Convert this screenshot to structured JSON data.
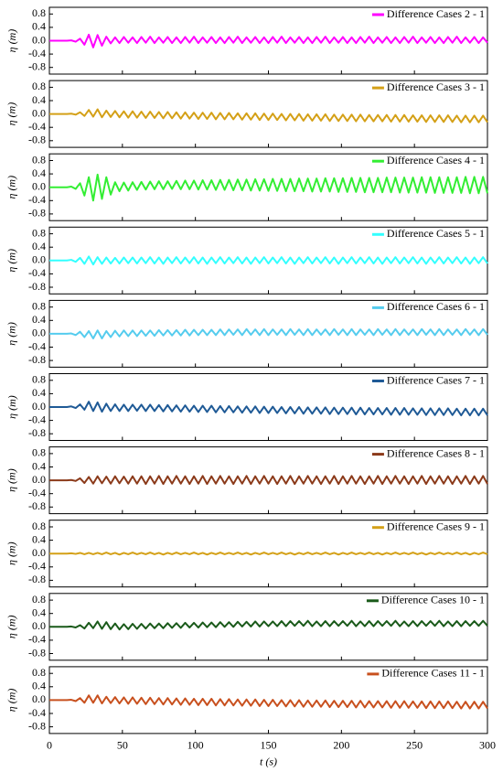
{
  "chart_data": {
    "type": "line",
    "ylabel": "η (m)",
    "xlabel": "t (s)",
    "xlim": [
      0,
      300
    ],
    "xticks": [
      0,
      50,
      100,
      150,
      200,
      250,
      300
    ],
    "ylim": [
      -1,
      1
    ],
    "yticks": [
      -0.8,
      -0.4,
      {
        "value": 0,
        "label": "0.0"
      },
      0.4,
      0.8
    ],
    "x": [
      0,
      3,
      6,
      9,
      12,
      15,
      18,
      21,
      24,
      27,
      30,
      33,
      36,
      39,
      42,
      45,
      48,
      51,
      54,
      57,
      60,
      63,
      66,
      69,
      72,
      75,
      78,
      81,
      84,
      87,
      90,
      93,
      96,
      99,
      102,
      105,
      108,
      111,
      114,
      117,
      120,
      123,
      126,
      129,
      132,
      135,
      138,
      141,
      144,
      147,
      150,
      153,
      156,
      159,
      162,
      165,
      168,
      171,
      174,
      177,
      180,
      183,
      186,
      189,
      192,
      195,
      198,
      201,
      204,
      207,
      210,
      213,
      216,
      219,
      222,
      225,
      228,
      231,
      234,
      237,
      240,
      243,
      246,
      249,
      252,
      255,
      258,
      261,
      264,
      267,
      270,
      273,
      276,
      279,
      282,
      285,
      288,
      291,
      294,
      297,
      300
    ],
    "series": [
      {
        "name": "Difference Cases 2 - 1",
        "color": "#ff00ff",
        "values": [
          0,
          0,
          0,
          0,
          0,
          0.01,
          -0.03,
          0.06,
          -0.12,
          0.18,
          -0.2,
          0.17,
          -0.15,
          0.12,
          -0.08,
          0.1,
          -0.07,
          0.11,
          -0.06,
          0.1,
          -0.07,
          0.11,
          -0.06,
          0.12,
          -0.07,
          0.1,
          -0.06,
          0.11,
          -0.07,
          0.1,
          -0.07,
          0.11,
          -0.06,
          0.12,
          -0.07,
          0.1,
          -0.06,
          0.11,
          -0.07,
          0.1,
          -0.07,
          0.11,
          -0.06,
          0.12,
          -0.07,
          0.1,
          -0.06,
          0.11,
          -0.07,
          0.1,
          -0.07,
          0.11,
          -0.06,
          0.12,
          -0.07,
          0.1,
          -0.06,
          0.11,
          -0.07,
          0.1,
          -0.07,
          0.11,
          -0.06,
          0.12,
          -0.07,
          0.1,
          -0.06,
          0.11,
          -0.07,
          0.1,
          -0.07,
          0.11,
          -0.06,
          0.12,
          -0.07,
          0.1,
          -0.06,
          0.11,
          -0.07,
          0.1,
          -0.07,
          0.11,
          -0.06,
          0.12,
          -0.07,
          0.1,
          -0.06,
          0.11,
          -0.07,
          0.1,
          -0.07,
          0.11,
          -0.06,
          0.12,
          -0.07,
          0.1,
          -0.06,
          0.11,
          -0.07,
          0.1,
          -0.06
        ]
      },
      {
        "name": "Difference Cases 3 - 1",
        "color": "#d4a017",
        "values": [
          0,
          0,
          0,
          0,
          0,
          0.01,
          -0.02,
          0.05,
          -0.06,
          0.12,
          -0.08,
          0.14,
          -0.1,
          0.1,
          -0.09,
          0.09,
          -0.1,
          0.08,
          -0.11,
          0.08,
          -0.11,
          0.07,
          -0.12,
          0.07,
          -0.12,
          0.06,
          -0.13,
          0.06,
          -0.13,
          0.05,
          -0.14,
          0.05,
          -0.14,
          0.04,
          -0.15,
          0.04,
          -0.15,
          0.04,
          -0.16,
          0.03,
          -0.16,
          0.03,
          -0.16,
          0.02,
          -0.17,
          0.02,
          -0.17,
          0.02,
          -0.18,
          0.01,
          -0.18,
          0.01,
          -0.18,
          0,
          -0.19,
          0,
          -0.19,
          0,
          -0.2,
          -0.01,
          -0.2,
          -0.01,
          -0.2,
          -0.01,
          -0.21,
          -0.02,
          -0.21,
          -0.02,
          -0.21,
          -0.02,
          -0.22,
          -0.02,
          -0.22,
          -0.03,
          -0.22,
          -0.03,
          -0.22,
          -0.03,
          -0.23,
          -0.03,
          -0.23,
          -0.03,
          -0.23,
          -0.04,
          -0.23,
          -0.04,
          -0.24,
          -0.04,
          -0.24,
          -0.04,
          -0.24,
          -0.04,
          -0.24,
          -0.05,
          -0.25,
          -0.05,
          -0.25,
          -0.05,
          -0.25,
          -0.05,
          -0.25
        ]
      },
      {
        "name": "Difference Cases 4 - 1",
        "color": "#33ee33",
        "values": [
          0,
          0,
          0,
          0,
          0,
          0.02,
          -0.05,
          0.12,
          -0.25,
          0.3,
          -0.4,
          0.38,
          -0.35,
          0.3,
          -0.22,
          0.15,
          -0.12,
          0.14,
          -0.1,
          0.15,
          -0.08,
          0.16,
          -0.07,
          0.17,
          -0.06,
          0.18,
          -0.06,
          0.18,
          -0.05,
          0.19,
          -0.06,
          0.2,
          -0.06,
          0.2,
          -0.07,
          0.21,
          -0.07,
          0.21,
          -0.08,
          0.22,
          -0.08,
          0.22,
          -0.09,
          0.23,
          -0.09,
          0.23,
          -0.1,
          0.24,
          -0.1,
          0.24,
          -0.11,
          0.25,
          -0.11,
          0.25,
          -0.12,
          0.25,
          -0.12,
          0.26,
          -0.12,
          0.26,
          -0.13,
          0.26,
          -0.13,
          0.27,
          -0.13,
          0.27,
          -0.14,
          0.27,
          -0.14,
          0.28,
          -0.14,
          0.28,
          -0.15,
          0.28,
          -0.15,
          0.28,
          -0.15,
          0.29,
          -0.15,
          0.29,
          -0.16,
          0.29,
          -0.16,
          0.29,
          -0.16,
          0.3,
          -0.16,
          0.3,
          -0.17,
          0.3,
          -0.17,
          0.3,
          -0.17,
          0.3,
          -0.17,
          0.31,
          -0.18,
          0.31,
          -0.18,
          0.31,
          -0.18
        ]
      },
      {
        "name": "Difference Cases 5 - 1",
        "color": "#33ffff",
        "values": [
          0,
          0,
          0,
          0,
          0,
          0.02,
          -0.04,
          0.08,
          -0.1,
          0.12,
          -0.12,
          0.1,
          -0.1,
          0.09,
          -0.09,
          0.08,
          -0.09,
          0.09,
          -0.08,
          0.09,
          -0.09,
          0.09,
          -0.08,
          0.1,
          -0.09,
          0.09,
          -0.1,
          0.09,
          -0.08,
          0.1,
          -0.09,
          0.09,
          -0.08,
          0.1,
          -0.09,
          0.09,
          -0.1,
          0.09,
          -0.08,
          0.1,
          -0.09,
          0.09,
          -0.08,
          0.1,
          -0.09,
          0.09,
          -0.1,
          0.09,
          -0.08,
          0.1,
          -0.09,
          0.09,
          -0.08,
          0.1,
          -0.09,
          0.09,
          -0.1,
          0.09,
          -0.08,
          0.1,
          -0.09,
          0.09,
          -0.08,
          0.1,
          -0.09,
          0.09,
          -0.1,
          0.09,
          -0.08,
          0.1,
          -0.09,
          0.09,
          -0.08,
          0.1,
          -0.09,
          0.09,
          -0.1,
          0.09,
          -0.08,
          0.1,
          -0.09,
          0.09,
          -0.08,
          0.1,
          -0.09,
          0.09,
          -0.1,
          0.09,
          -0.08,
          0.1,
          -0.09,
          0.09,
          -0.08,
          0.1,
          -0.09,
          0.09,
          -0.1,
          0.09,
          -0.08,
          0.1,
          -0.09
        ]
      },
      {
        "name": "Difference Cases 6 - 1",
        "color": "#55ccee",
        "values": [
          0,
          0,
          0,
          0,
          0,
          0.01,
          -0.04,
          0.06,
          -0.1,
          0.08,
          -0.14,
          0.1,
          -0.14,
          0.08,
          -0.1,
          0.09,
          -0.08,
          0.1,
          -0.07,
          0.1,
          -0.07,
          0.1,
          -0.06,
          0.1,
          -0.06,
          0.11,
          -0.05,
          0.11,
          -0.05,
          0.11,
          -0.05,
          0.12,
          -0.05,
          0.12,
          -0.04,
          0.12,
          -0.04,
          0.12,
          -0.04,
          0.13,
          -0.04,
          0.13,
          -0.03,
          0.13,
          -0.04,
          0.14,
          -0.03,
          0.13,
          -0.04,
          0.14,
          -0.04,
          0.13,
          -0.03,
          0.13,
          -0.04,
          0.14,
          -0.03,
          0.13,
          -0.04,
          0.14,
          -0.04,
          0.13,
          -0.03,
          0.13,
          -0.04,
          0.14,
          -0.03,
          0.13,
          -0.04,
          0.14,
          -0.04,
          0.13,
          -0.03,
          0.13,
          -0.04,
          0.14,
          -0.03,
          0.13,
          -0.04,
          0.14,
          -0.04,
          0.13,
          -0.03,
          0.13,
          -0.04,
          0.14,
          -0.03,
          0.13,
          -0.04,
          0.14,
          -0.04,
          0.13,
          -0.03,
          0.13,
          -0.04,
          0.14,
          -0.03,
          0.13,
          -0.04,
          0.14,
          -0.03
        ]
      },
      {
        "name": "Difference Cases 7 - 1",
        "color": "#1f5a96",
        "values": [
          0,
          0,
          0,
          0,
          0,
          0.02,
          -0.03,
          0.08,
          -0.08,
          0.16,
          -0.12,
          0.14,
          -0.14,
          0.1,
          -0.12,
          0.08,
          -0.12,
          0.07,
          -0.12,
          0.07,
          -0.11,
          0.07,
          -0.12,
          0.07,
          -0.12,
          0.06,
          -0.13,
          0.06,
          -0.13,
          0.05,
          -0.14,
          0.05,
          -0.14,
          0.04,
          -0.15,
          0.04,
          -0.15,
          0.04,
          -0.16,
          0.03,
          -0.16,
          0.03,
          -0.16,
          0.02,
          -0.17,
          0.02,
          -0.17,
          0.02,
          -0.18,
          0.01,
          -0.18,
          0.01,
          -0.18,
          0,
          -0.19,
          0,
          -0.19,
          0,
          -0.2,
          -0.01,
          -0.2,
          -0.01,
          -0.2,
          -0.01,
          -0.21,
          -0.02,
          -0.21,
          -0.02,
          -0.21,
          -0.02,
          -0.22,
          -0.02,
          -0.22,
          -0.03,
          -0.22,
          -0.03,
          -0.22,
          -0.03,
          -0.23,
          -0.03,
          -0.23,
          -0.03,
          -0.23,
          -0.04,
          -0.23,
          -0.04,
          -0.24,
          -0.04,
          -0.24,
          -0.04,
          -0.24,
          -0.04,
          -0.24,
          -0.05,
          -0.25,
          -0.05,
          -0.25,
          -0.05,
          -0.25,
          -0.05,
          -0.25
        ]
      },
      {
        "name": "Difference Cases 8 - 1",
        "color": "#8b3a1a",
        "values": [
          0,
          0,
          0,
          0,
          0,
          0.01,
          -0.02,
          0.06,
          -0.08,
          0.1,
          -0.1,
          0.12,
          -0.09,
          0.11,
          -0.1,
          0.12,
          -0.09,
          0.11,
          -0.1,
          0.12,
          -0.1,
          0.12,
          -0.11,
          0.12,
          -0.1,
          0.13,
          -0.11,
          0.12,
          -0.1,
          0.13,
          -0.1,
          0.12,
          -0.11,
          0.12,
          -0.1,
          0.13,
          -0.11,
          0.12,
          -0.1,
          0.13,
          -0.1,
          0.12,
          -0.11,
          0.12,
          -0.1,
          0.13,
          -0.11,
          0.12,
          -0.1,
          0.13,
          -0.1,
          0.12,
          -0.11,
          0.12,
          -0.1,
          0.13,
          -0.11,
          0.12,
          -0.1,
          0.13,
          -0.1,
          0.12,
          -0.11,
          0.12,
          -0.1,
          0.13,
          -0.11,
          0.12,
          -0.1,
          0.13,
          -0.1,
          0.12,
          -0.11,
          0.12,
          -0.1,
          0.13,
          -0.11,
          0.12,
          -0.1,
          0.13,
          -0.1,
          0.12,
          -0.11,
          0.12,
          -0.1,
          0.13,
          -0.11,
          0.12,
          -0.1,
          0.13,
          -0.1,
          0.12,
          -0.11,
          0.12,
          -0.1,
          0.13,
          -0.11,
          0.12,
          -0.1,
          0.13,
          -0.11
        ]
      },
      {
        "name": "Difference Cases 9 - 1",
        "color": "#d4a017",
        "values": [
          0,
          0,
          0,
          0,
          0,
          0.01,
          -0.01,
          0.02,
          -0.02,
          0.02,
          -0.02,
          0.02,
          -0.02,
          0.03,
          -0.02,
          0.02,
          -0.03,
          0.02,
          -0.02,
          0.03,
          -0.02,
          0.02,
          -0.02,
          0.03,
          -0.02,
          0.02,
          -0.03,
          0.02,
          -0.02,
          0.03,
          -0.02,
          0.02,
          -0.02,
          0.03,
          -0.02,
          0.02,
          -0.03,
          0.02,
          -0.02,
          0.03,
          -0.02,
          0.02,
          -0.02,
          0.03,
          -0.02,
          0.02,
          -0.03,
          0.02,
          -0.02,
          0.03,
          -0.02,
          0.02,
          -0.02,
          0.03,
          -0.02,
          0.02,
          -0.03,
          0.02,
          -0.02,
          0.03,
          -0.02,
          0.02,
          -0.02,
          0.03,
          -0.02,
          0.02,
          -0.03,
          0.02,
          -0.02,
          0.03,
          -0.02,
          0.02,
          -0.02,
          0.03,
          -0.02,
          0.02,
          -0.03,
          0.02,
          -0.02,
          0.03,
          -0.02,
          0.02,
          -0.02,
          0.03,
          -0.02,
          0.02,
          -0.03,
          0.02,
          -0.02,
          0.03,
          -0.02,
          0.02,
          -0.02,
          0.03,
          -0.02,
          0.02,
          -0.03,
          0.02,
          -0.02,
          0.03,
          -0.02
        ]
      },
      {
        "name": "Difference Cases 10 - 1",
        "color": "#1a5a1a",
        "values": [
          0,
          0,
          0,
          0,
          0,
          0.01,
          -0.02,
          0.05,
          -0.05,
          0.12,
          -0.04,
          0.16,
          -0.06,
          0.14,
          -0.07,
          0.1,
          -0.08,
          0.08,
          -0.07,
          0.09,
          -0.06,
          0.09,
          -0.05,
          0.1,
          -0.04,
          0.1,
          -0.04,
          0.11,
          -0.03,
          0.11,
          -0.03,
          0.12,
          -0.02,
          0.12,
          -0.02,
          0.13,
          -0.01,
          0.13,
          -0.01,
          0.14,
          0,
          0.14,
          0,
          0.15,
          0.01,
          0.15,
          0.01,
          0.16,
          0.01,
          0.16,
          0.02,
          0.16,
          0.02,
          0.17,
          0.02,
          0.17,
          0.03,
          0.17,
          0.03,
          0.18,
          0.02,
          0.16,
          0.02,
          0.17,
          0.02,
          0.17,
          0.03,
          0.17,
          0.03,
          0.18,
          0.02,
          0.16,
          0.02,
          0.17,
          0.02,
          0.17,
          0.03,
          0.17,
          0.03,
          0.18,
          0.02,
          0.16,
          0.02,
          0.17,
          0.02,
          0.17,
          0.03,
          0.17,
          0.03,
          0.18,
          0.02,
          0.16,
          0.02,
          0.17,
          0.02,
          0.17,
          0.03,
          0.17,
          0.03,
          0.18,
          0.03
        ]
      },
      {
        "name": "Difference Cases 11 - 1",
        "color": "#c8501e",
        "values": [
          0,
          0,
          0,
          0,
          0,
          0.01,
          -0.03,
          0.06,
          -0.08,
          0.14,
          -0.08,
          0.14,
          -0.1,
          0.1,
          -0.09,
          0.09,
          -0.1,
          0.08,
          -0.11,
          0.08,
          -0.11,
          0.07,
          -0.12,
          0.07,
          -0.12,
          0.06,
          -0.13,
          0.06,
          -0.13,
          0.05,
          -0.14,
          0.05,
          -0.14,
          0.04,
          -0.15,
          0.04,
          -0.15,
          0.04,
          -0.16,
          0.03,
          -0.16,
          0.03,
          -0.16,
          0.02,
          -0.17,
          0.02,
          -0.17,
          0.02,
          -0.18,
          0.01,
          -0.18,
          0.01,
          -0.18,
          0,
          -0.19,
          0,
          -0.19,
          0,
          -0.2,
          -0.01,
          -0.2,
          -0.01,
          -0.2,
          -0.01,
          -0.21,
          -0.02,
          -0.21,
          -0.02,
          -0.21,
          -0.02,
          -0.22,
          -0.02,
          -0.22,
          -0.03,
          -0.22,
          -0.03,
          -0.22,
          -0.03,
          -0.23,
          -0.03,
          -0.23,
          -0.03,
          -0.23,
          -0.04,
          -0.23,
          -0.04,
          -0.24,
          -0.04,
          -0.24,
          -0.04,
          -0.24,
          -0.04,
          -0.24,
          -0.05,
          -0.25,
          -0.05,
          -0.25,
          -0.05,
          -0.25,
          -0.05,
          -0.25
        ]
      }
    ]
  }
}
